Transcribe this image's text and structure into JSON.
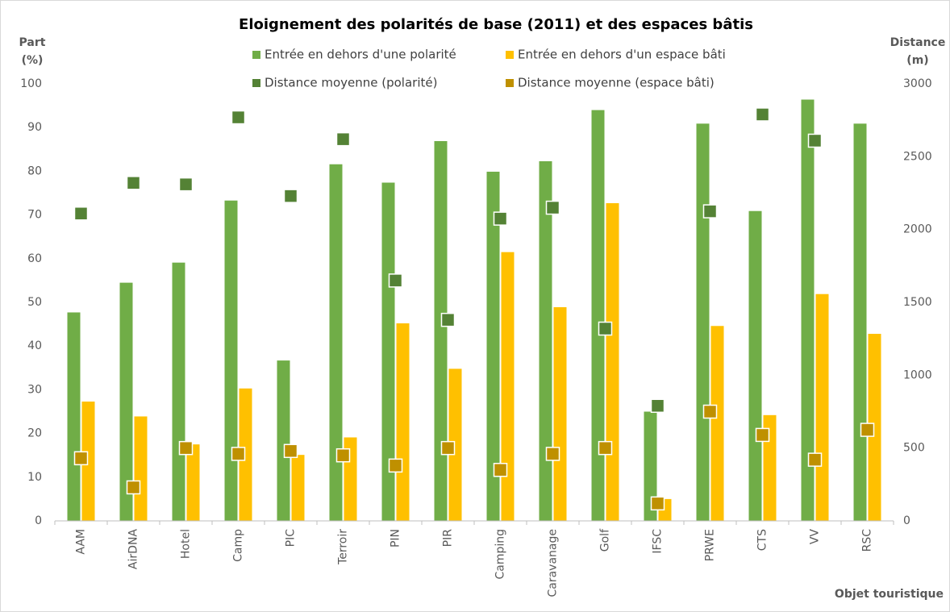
{
  "chart_data": {
    "type": "bar",
    "title": "Eloignement des polarités de base (2011) et des espaces bâtis",
    "y_label": [
      "Part",
      "(%)"
    ],
    "y2_label": [
      "Distance",
      "(m)"
    ],
    "x_label": "Objet touristique",
    "categories": [
      "AAM",
      "AirDNA",
      "Hotel",
      "Camp",
      "PIC",
      "Terroir",
      "PIN",
      "PIR",
      "Camping",
      "Caravanage",
      "Golf",
      "IFSC",
      "PRWE",
      "CTS",
      "VV",
      "RSC"
    ],
    "series": [
      {
        "name": "Entrée en dehors d'une polarité",
        "type": "bar",
        "color": "#70ad47",
        "values": [
          47.7,
          54.5,
          59.1,
          73.3,
          36.7,
          81.6,
          77.4,
          86.9,
          79.9,
          82.3,
          94,
          25,
          90.9,
          70.9,
          96.4,
          90.9
        ]
      },
      {
        "name": "Entrée en dehors d'un espace bâti",
        "type": "bar",
        "color": "#ffc000",
        "values": [
          27.3,
          23.9,
          17.5,
          30.3,
          15.1,
          19.1,
          45.2,
          34.8,
          61.5,
          48.9,
          72.7,
          5,
          44.6,
          24.2,
          51.9,
          42.8
        ]
      },
      {
        "name": "Distance moyenne (polarité)",
        "type": "scatter",
        "axis": "y2",
        "color": "#548235",
        "values": [
          2110,
          2320,
          2310,
          2770,
          2230,
          2620,
          1650,
          1380,
          2075,
          2150,
          1320,
          790,
          2125,
          2790,
          2610,
          null
        ]
      },
      {
        "name": "Distance moyenne (espace bâti)",
        "type": "scatter",
        "axis": "y2",
        "color": "#bf9000",
        "values": [
          430,
          230,
          500,
          460,
          480,
          450,
          380,
          500,
          350,
          460,
          500,
          120,
          750,
          590,
          420,
          625
        ]
      }
    ],
    "ylim": [
      0,
      100
    ],
    "yticks": [
      0,
      10,
      20,
      30,
      40,
      50,
      60,
      70,
      80,
      90,
      100
    ],
    "y2lim": [
      0,
      3000
    ],
    "y2ticks": [
      0,
      500,
      1000,
      1500,
      2000,
      2500,
      3000
    ],
    "grid": false
  }
}
